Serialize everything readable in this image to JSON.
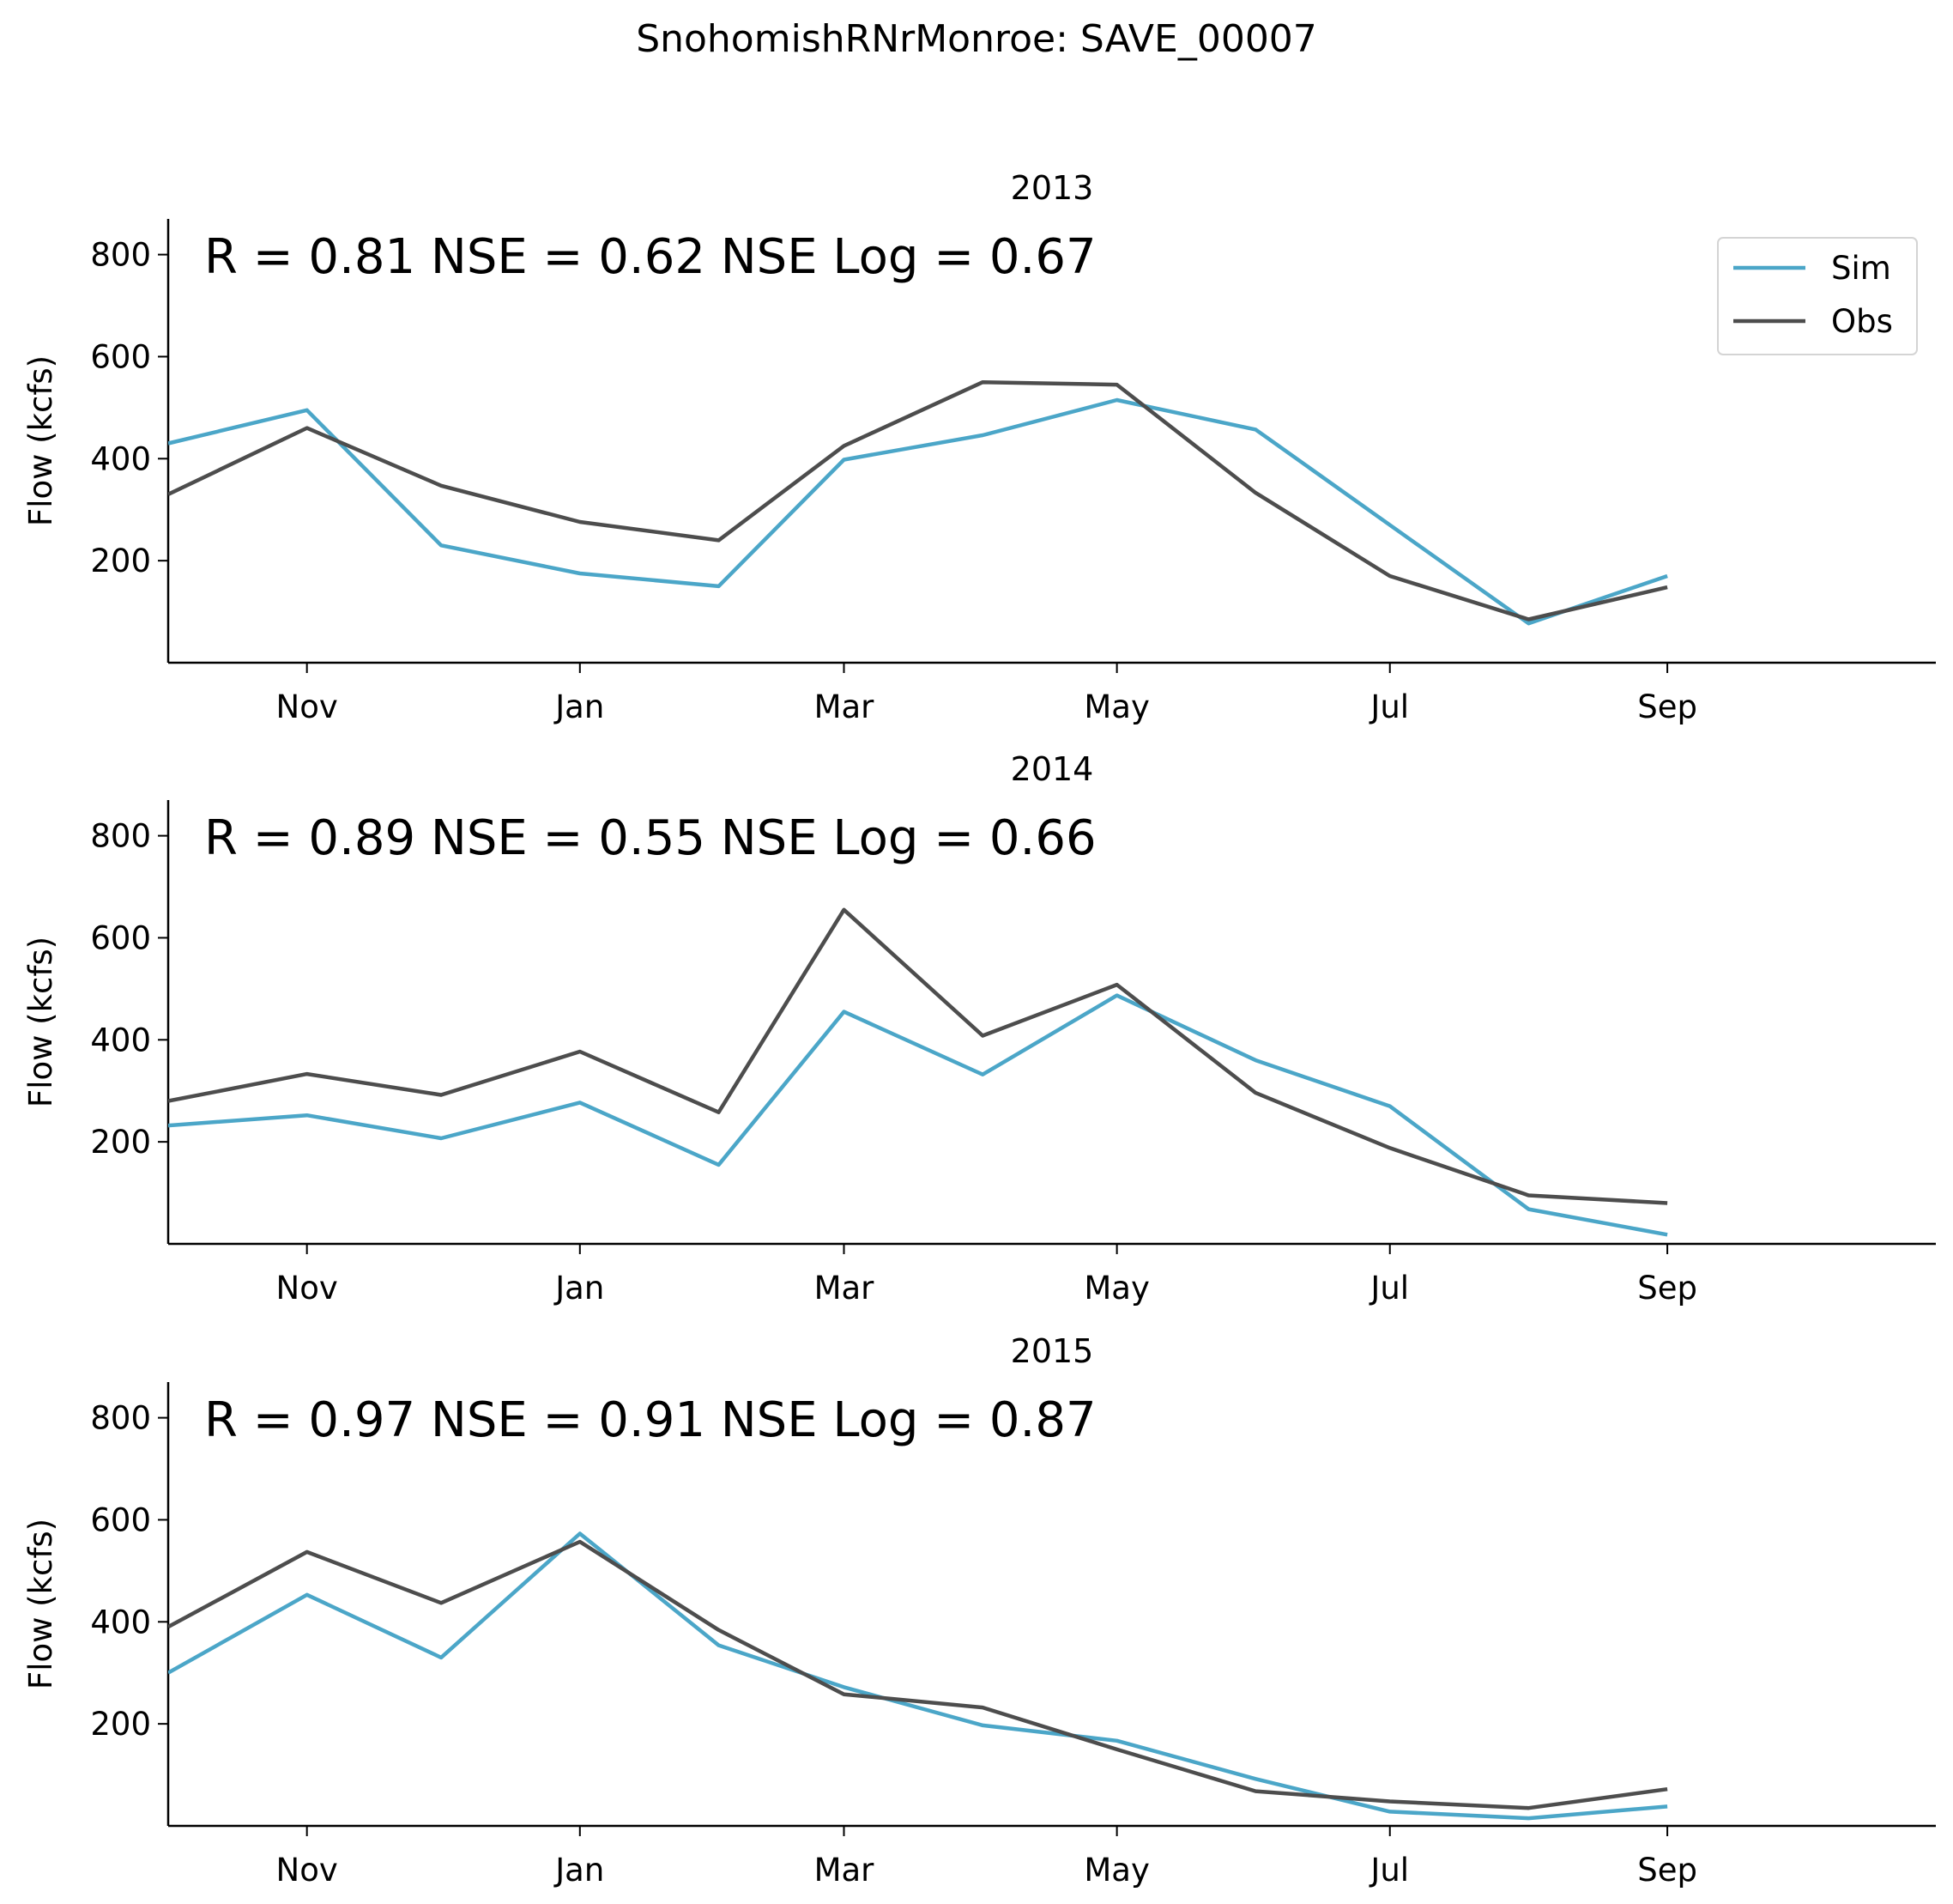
{
  "figure": {
    "title": "SnohomishRNrMonroe: SAVE_00007"
  },
  "legend": {
    "placement": "upper right of first panel",
    "entries": [
      {
        "label": "Sim",
        "color": "#4ba6c8"
      },
      {
        "label": "Obs",
        "color": "#4d4d4d"
      }
    ]
  },
  "chart_data": [
    {
      "type": "line",
      "title": "2013",
      "ylabel": "Flow (kcfs)",
      "xlabel": "",
      "annotation": "R = 0.81  NSE = 0.62  NSE Log = 0.67",
      "x": [
        "2012-10-01",
        "2012-11-01",
        "2012-12-01",
        "2013-01-01",
        "2013-02-01",
        "2013-03-01",
        "2013-04-01",
        "2013-05-01",
        "2013-06-01",
        "2013-07-01",
        "2013-08-01",
        "2013-09-01"
      ],
      "xlim": [
        "2012-10-01",
        "2013-10-31"
      ],
      "xticks": [
        {
          "date": "2012-11-01",
          "label": "Nov"
        },
        {
          "date": "2013-01-01",
          "label": "Jan"
        },
        {
          "date": "2013-03-01",
          "label": "Mar"
        },
        {
          "date": "2013-05-01",
          "label": "May"
        },
        {
          "date": "2013-07-01",
          "label": "Jul"
        },
        {
          "date": "2013-09-01",
          "label": "Sep"
        }
      ],
      "yticks": [
        200,
        400,
        600,
        800
      ],
      "ylim": [
        0,
        870
      ],
      "series": [
        {
          "name": "Sim",
          "color": "#4ba6c8",
          "values": [
            430,
            495,
            230,
            175,
            150,
            398,
            446,
            515,
            457,
            270,
            77,
            170
          ]
        },
        {
          "name": "Obs",
          "color": "#4d4d4d",
          "values": [
            330,
            460,
            347,
            276,
            240,
            425,
            550,
            545,
            333,
            170,
            85,
            148
          ]
        }
      ],
      "grid": false,
      "legend": true
    },
    {
      "type": "line",
      "title": "2014",
      "ylabel": "Flow (kcfs)",
      "xlabel": "",
      "annotation": "R = 0.89  NSE = 0.55  NSE Log = 0.66",
      "x": [
        "2013-10-01",
        "2013-11-01",
        "2013-12-01",
        "2014-01-01",
        "2014-02-01",
        "2014-03-01",
        "2014-04-01",
        "2014-05-01",
        "2014-06-01",
        "2014-07-01",
        "2014-08-01",
        "2014-09-01"
      ],
      "xlim": [
        "2013-10-01",
        "2014-10-31"
      ],
      "xticks": [
        {
          "date": "2013-11-01",
          "label": "Nov"
        },
        {
          "date": "2014-01-01",
          "label": "Jan"
        },
        {
          "date": "2014-03-01",
          "label": "Mar"
        },
        {
          "date": "2014-05-01",
          "label": "May"
        },
        {
          "date": "2014-07-01",
          "label": "Jul"
        },
        {
          "date": "2014-09-01",
          "label": "Sep"
        }
      ],
      "yticks": [
        200,
        400,
        600,
        800
      ],
      "ylim": [
        0,
        870
      ],
      "series": [
        {
          "name": "Sim",
          "color": "#4ba6c8",
          "values": [
            232,
            252,
            207,
            277,
            155,
            455,
            332,
            487,
            360,
            270,
            68,
            18
          ]
        },
        {
          "name": "Obs",
          "color": "#4d4d4d",
          "values": [
            280,
            333,
            292,
            377,
            258,
            655,
            408,
            508,
            296,
            188,
            95,
            80
          ]
        }
      ],
      "grid": false,
      "legend": false
    },
    {
      "type": "line",
      "title": "2015",
      "ylabel": "Flow (kcfs)",
      "xlabel": "",
      "annotation": "R = 0.97  NSE = 0.91  NSE Log = 0.87",
      "x": [
        "2014-10-01",
        "2014-11-01",
        "2014-12-01",
        "2015-01-01",
        "2015-02-01",
        "2015-03-01",
        "2015-04-01",
        "2015-05-01",
        "2015-06-01",
        "2015-07-01",
        "2015-08-01",
        "2015-09-01"
      ],
      "xlim": [
        "2014-10-01",
        "2015-10-31"
      ],
      "xticks": [
        {
          "date": "2014-11-01",
          "label": "Nov"
        },
        {
          "date": "2015-01-01",
          "label": "Jan"
        },
        {
          "date": "2015-03-01",
          "label": "Mar"
        },
        {
          "date": "2015-05-01",
          "label": "May"
        },
        {
          "date": "2015-07-01",
          "label": "Jul"
        },
        {
          "date": "2015-09-01",
          "label": "Sep"
        }
      ],
      "yticks": [
        200,
        400,
        600,
        800
      ],
      "ylim": [
        0,
        870
      ],
      "series": [
        {
          "name": "Sim",
          "color": "#4ba6c8",
          "values": [
            300,
            453,
            330,
            573,
            354,
            272,
            197,
            167,
            92,
            28,
            15,
            38
          ]
        },
        {
          "name": "Obs",
          "color": "#4d4d4d",
          "values": [
            390,
            537,
            437,
            557,
            384,
            258,
            232,
            150,
            68,
            48,
            35,
            72
          ]
        }
      ],
      "grid": false,
      "legend": false
    }
  ]
}
